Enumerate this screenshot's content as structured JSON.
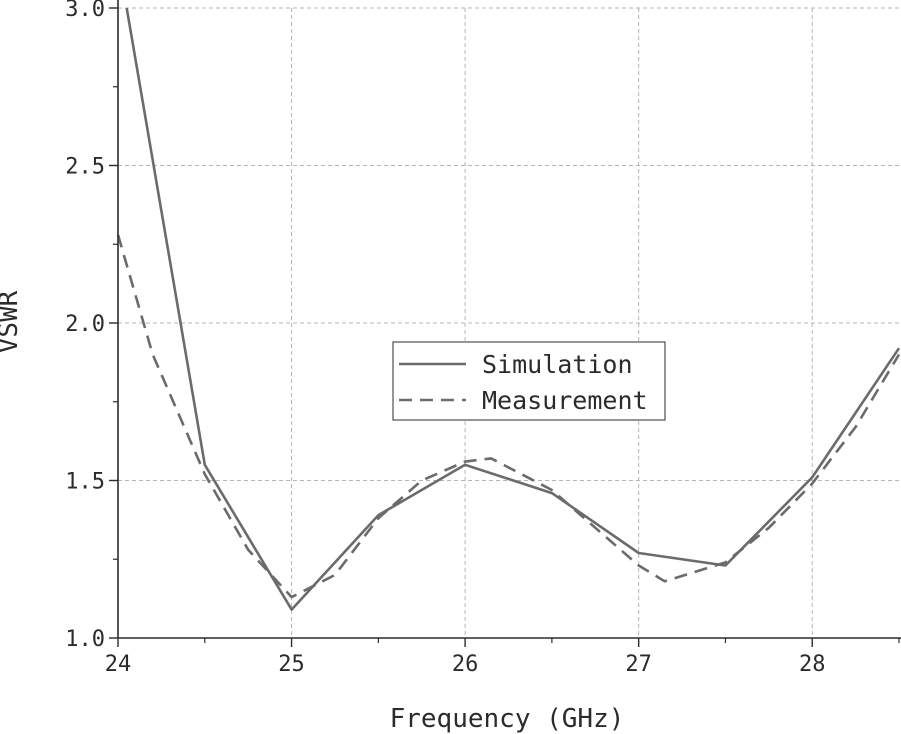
{
  "chart_data": {
    "type": "line",
    "title": "",
    "xlabel": "Frequency (GHz)",
    "ylabel": "VSWR",
    "xlim": [
      24,
      28.5
    ],
    "ylim": [
      1.0,
      3.0
    ],
    "xticks": [
      24,
      25,
      26,
      27,
      28
    ],
    "yticks": [
      1.0,
      1.5,
      2.0,
      2.5,
      3.0
    ],
    "xtick_labels": [
      "24",
      "25",
      "26",
      "27",
      "28"
    ],
    "ytick_labels": [
      "1.0",
      "1.5",
      "2.0",
      "2.5",
      "3.0"
    ],
    "grid": true,
    "legend_position": "center",
    "colors": {
      "line": "#6b6b6b",
      "grid": "#b5b5b5",
      "axis": "#2b2b2b"
    },
    "series": [
      {
        "name": "Simulation",
        "style": "solid",
        "x": [
          24.05,
          24.5,
          25.0,
          25.5,
          26.0,
          26.5,
          27.0,
          27.5,
          28.0,
          28.5
        ],
        "y": [
          3.0,
          1.55,
          1.09,
          1.39,
          1.55,
          1.46,
          1.27,
          1.23,
          1.51,
          1.92
        ]
      },
      {
        "name": "Measurement",
        "style": "dashed",
        "x": [
          24.0,
          24.2,
          24.5,
          24.75,
          25.0,
          25.25,
          25.5,
          25.75,
          26.0,
          26.15,
          26.5,
          26.75,
          27.0,
          27.15,
          27.5,
          27.75,
          28.0,
          28.25,
          28.5
        ],
        "y": [
          2.28,
          1.9,
          1.52,
          1.28,
          1.13,
          1.2,
          1.38,
          1.5,
          1.56,
          1.57,
          1.47,
          1.35,
          1.23,
          1.18,
          1.24,
          1.35,
          1.49,
          1.67,
          1.9
        ]
      }
    ]
  }
}
